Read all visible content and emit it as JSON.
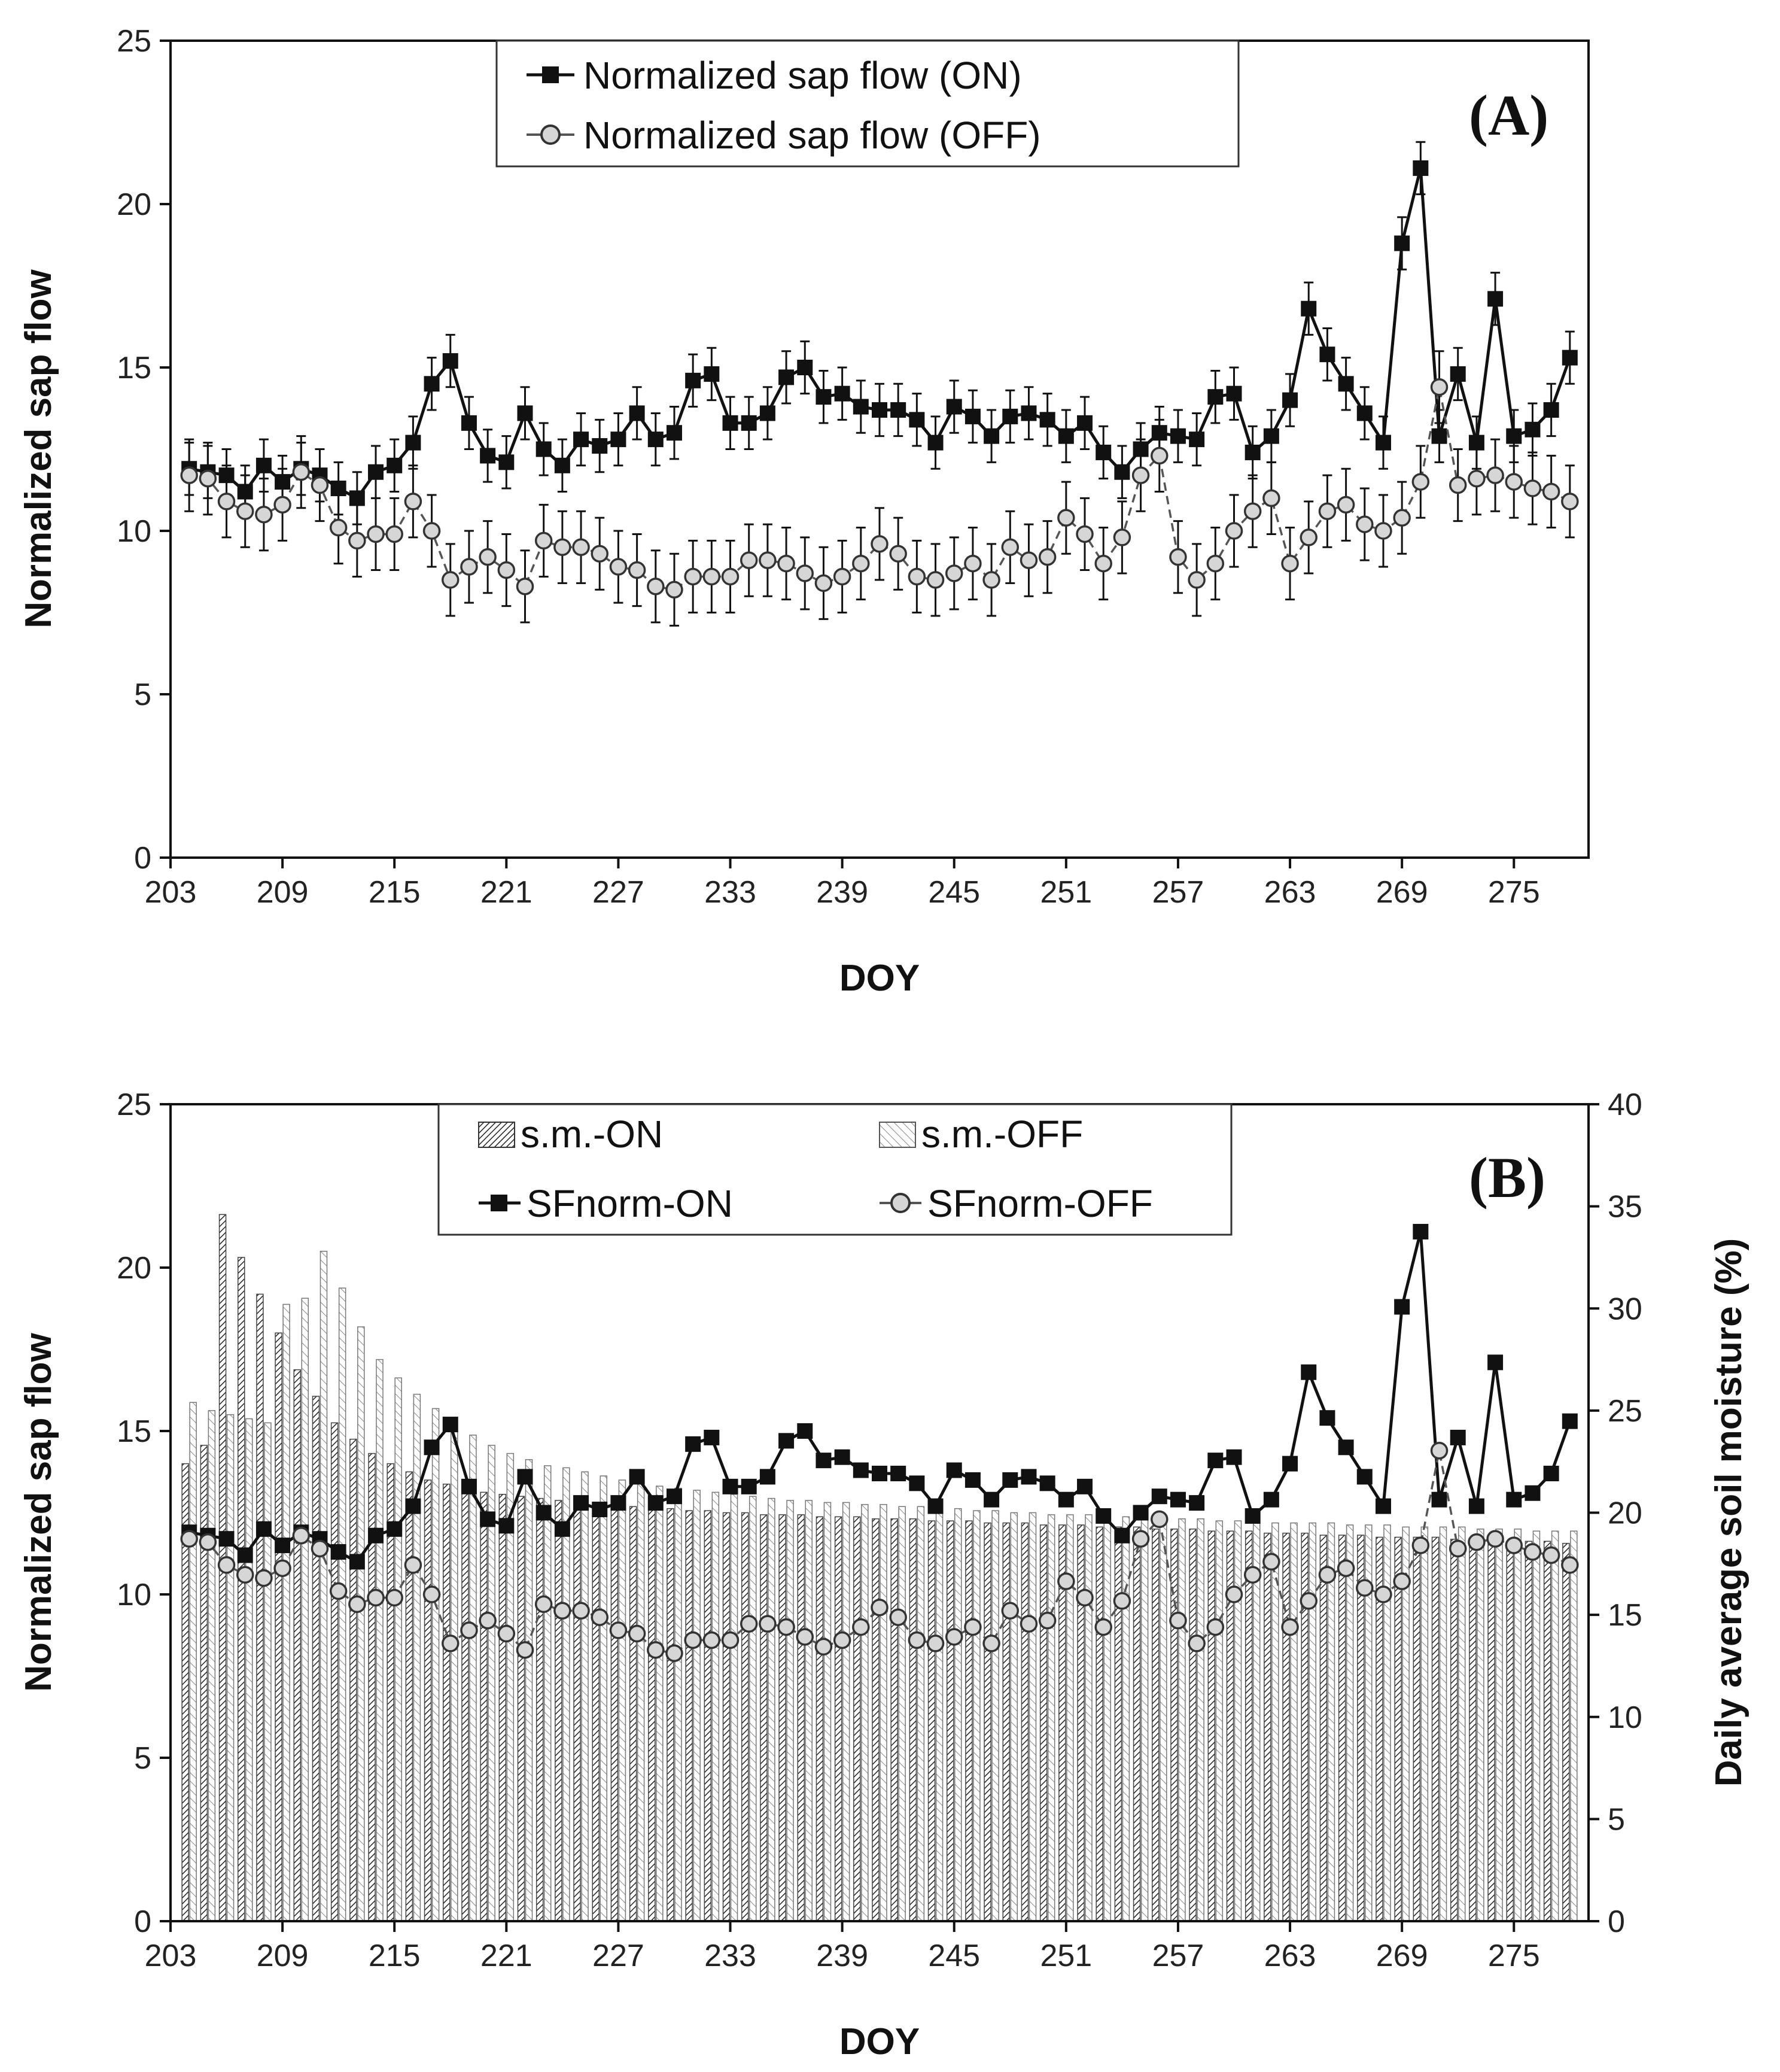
{
  "chart_data": [
    {
      "type": "line",
      "panel_label": "(A)",
      "xlabel": "DOY",
      "ylabel": "Normalized sap flow",
      "xlim": [
        203,
        279
      ],
      "ylim": [
        0,
        25
      ],
      "xticks": [
        "203",
        "209",
        "215",
        "221",
        "227",
        "233",
        "239",
        "245",
        "251",
        "257",
        "263",
        "269",
        "275"
      ],
      "yticks": [
        "0",
        "5",
        "10",
        "15",
        "20",
        "25"
      ],
      "x": [
        204,
        205,
        206,
        207,
        208,
        209,
        210,
        211,
        212,
        213,
        214,
        215,
        216,
        217,
        218,
        219,
        220,
        221,
        222,
        223,
        224,
        225,
        226,
        227,
        228,
        229,
        230,
        231,
        232,
        233,
        234,
        235,
        236,
        237,
        238,
        239,
        240,
        241,
        242,
        243,
        244,
        245,
        246,
        247,
        248,
        249,
        250,
        251,
        252,
        253,
        254,
        255,
        256,
        257,
        258,
        259,
        260,
        261,
        262,
        263,
        264,
        265,
        266,
        267,
        268,
        269,
        270,
        271,
        272,
        273,
        274,
        275,
        276,
        277,
        278
      ],
      "series": [
        {
          "name": "Normalized sap flow (ON)",
          "values": [
            11.9,
            11.8,
            11.7,
            11.2,
            12.0,
            11.5,
            11.9,
            11.7,
            11.3,
            11.0,
            11.8,
            12.0,
            12.7,
            14.5,
            15.2,
            13.3,
            12.3,
            12.1,
            13.6,
            12.5,
            12.0,
            12.8,
            12.6,
            12.8,
            13.6,
            12.8,
            13.0,
            14.6,
            14.8,
            13.3,
            13.3,
            13.6,
            14.7,
            15.0,
            14.1,
            14.2,
            13.8,
            13.7,
            13.7,
            13.4,
            12.7,
            13.8,
            13.5,
            12.9,
            13.5,
            13.6,
            13.4,
            12.9,
            13.3,
            12.4,
            11.8,
            12.5,
            13.0,
            12.9,
            12.8,
            14.1,
            14.2,
            12.4,
            12.9,
            14.0,
            16.8,
            15.4,
            14.5,
            13.6,
            12.7,
            18.8,
            21.1,
            12.9,
            14.8,
            12.7,
            17.1,
            12.9,
            13.1,
            13.7,
            15.3
          ],
          "error": 0.8,
          "marker": "filled-square",
          "line": "solid"
        },
        {
          "name": "Normalized sap flow (OFF)",
          "values": [
            11.7,
            11.6,
            10.9,
            10.6,
            10.5,
            10.8,
            11.8,
            11.4,
            10.1,
            9.7,
            9.9,
            9.9,
            10.9,
            10.0,
            8.5,
            8.9,
            9.2,
            8.8,
            8.3,
            9.7,
            9.5,
            9.5,
            9.3,
            8.9,
            8.8,
            8.3,
            8.2,
            8.6,
            8.6,
            8.6,
            9.1,
            9.1,
            9.0,
            8.7,
            8.4,
            8.6,
            9.0,
            9.6,
            9.3,
            8.6,
            8.5,
            8.7,
            9.0,
            8.5,
            9.5,
            9.1,
            9.2,
            10.4,
            9.9,
            9.0,
            9.8,
            11.7,
            12.3,
            9.2,
            8.5,
            9.0,
            10.0,
            10.6,
            11.0,
            9.0,
            9.8,
            10.6,
            10.8,
            10.2,
            10.0,
            10.4,
            11.5,
            14.4,
            11.4,
            11.6,
            11.7,
            11.5,
            11.3,
            11.2,
            10.9
          ],
          "error": 1.1,
          "marker": "open-circle",
          "line": "dashed"
        }
      ]
    },
    {
      "type": "bar+line",
      "panel_label": "(B)",
      "xlabel": "DOY",
      "ylabel": "Normalized sap flow",
      "y2label": "Daily average soil moisture (%)",
      "xlim": [
        203,
        279
      ],
      "ylim": [
        0,
        25
      ],
      "y2lim": [
        0,
        40
      ],
      "xticks": [
        "203",
        "209",
        "215",
        "221",
        "227",
        "233",
        "239",
        "245",
        "251",
        "257",
        "263",
        "269",
        "275"
      ],
      "yticks": [
        "0",
        "5",
        "10",
        "15",
        "20",
        "25"
      ],
      "y2ticks": [
        "0",
        "5",
        "10",
        "15",
        "20",
        "25",
        "30",
        "35",
        "40"
      ],
      "x": [
        204,
        205,
        206,
        207,
        208,
        209,
        210,
        211,
        212,
        213,
        214,
        215,
        216,
        217,
        218,
        219,
        220,
        221,
        222,
        223,
        224,
        225,
        226,
        227,
        228,
        229,
        230,
        231,
        232,
        233,
        234,
        235,
        236,
        237,
        238,
        239,
        240,
        241,
        242,
        243,
        244,
        245,
        246,
        247,
        248,
        249,
        250,
        251,
        252,
        253,
        254,
        255,
        256,
        257,
        258,
        259,
        260,
        261,
        262,
        263,
        264,
        265,
        266,
        267,
        268,
        269,
        270,
        271,
        272,
        273,
        274,
        275,
        276,
        277,
        278
      ],
      "bar_series": [
        {
          "name": "s.m.-ON",
          "values": [
            22.4,
            23.3,
            34.6,
            32.5,
            30.7,
            28.8,
            27.0,
            25.7,
            24.4,
            23.6,
            22.9,
            22.4,
            22.0,
            21.6,
            21.4,
            21.2,
            21.0,
            20.9,
            20.8,
            20.7,
            20.6,
            20.5,
            20.4,
            20.3,
            20.3,
            20.2,
            20.2,
            20.1,
            20.1,
            20.0,
            20.0,
            19.9,
            19.9,
            19.9,
            19.8,
            19.8,
            19.8,
            19.7,
            19.7,
            19.7,
            19.6,
            19.6,
            19.6,
            19.5,
            19.5,
            19.5,
            19.4,
            19.4,
            19.4,
            19.3,
            19.3,
            19.3,
            19.2,
            19.2,
            19.2,
            19.1,
            19.1,
            19.1,
            19.0,
            19.0,
            19.0,
            18.9,
            18.9,
            18.9,
            18.8,
            18.8,
            18.8,
            18.8,
            18.7,
            18.7,
            18.7,
            18.6,
            18.6,
            18.6,
            18.5
          ],
          "pattern": "dense-hatch"
        },
        {
          "name": "s.m.-OFF",
          "values": [
            25.4,
            25.0,
            24.8,
            24.6,
            24.4,
            30.2,
            30.5,
            32.8,
            31.0,
            29.1,
            27.5,
            26.6,
            25.8,
            25.1,
            24.6,
            23.8,
            23.3,
            22.9,
            22.6,
            22.3,
            22.2,
            22.0,
            21.8,
            21.6,
            21.5,
            21.3,
            21.2,
            21.1,
            21.0,
            20.9,
            20.8,
            20.7,
            20.6,
            20.6,
            20.5,
            20.5,
            20.4,
            20.4,
            20.3,
            20.3,
            20.2,
            20.2,
            20.1,
            20.1,
            20.0,
            20.0,
            19.9,
            19.9,
            19.9,
            19.8,
            19.8,
            19.8,
            19.7,
            19.7,
            19.7,
            19.6,
            19.6,
            19.6,
            19.5,
            19.5,
            19.5,
            19.5,
            19.4,
            19.4,
            19.4,
            19.3,
            19.3,
            19.3,
            19.3,
            19.2,
            19.2,
            19.2,
            19.1,
            19.1,
            19.1
          ],
          "pattern": "light-hatch"
        }
      ],
      "series": [
        {
          "name": "SFnorm-ON",
          "values": [
            11.9,
            11.8,
            11.7,
            11.2,
            12.0,
            11.5,
            11.9,
            11.7,
            11.3,
            11.0,
            11.8,
            12.0,
            12.7,
            14.5,
            15.2,
            13.3,
            12.3,
            12.1,
            13.6,
            12.5,
            12.0,
            12.8,
            12.6,
            12.8,
            13.6,
            12.8,
            13.0,
            14.6,
            14.8,
            13.3,
            13.3,
            13.6,
            14.7,
            15.0,
            14.1,
            14.2,
            13.8,
            13.7,
            13.7,
            13.4,
            12.7,
            13.8,
            13.5,
            12.9,
            13.5,
            13.6,
            13.4,
            12.9,
            13.3,
            12.4,
            11.8,
            12.5,
            13.0,
            12.9,
            12.8,
            14.1,
            14.2,
            12.4,
            12.9,
            14.0,
            16.8,
            15.4,
            14.5,
            13.6,
            12.7,
            18.8,
            21.1,
            12.9,
            14.8,
            12.7,
            17.1,
            12.9,
            13.1,
            13.7,
            15.3
          ],
          "marker": "filled-square",
          "line": "solid"
        },
        {
          "name": "SFnorm-OFF",
          "values": [
            11.7,
            11.6,
            10.9,
            10.6,
            10.5,
            10.8,
            11.8,
            11.4,
            10.1,
            9.7,
            9.9,
            9.9,
            10.9,
            10.0,
            8.5,
            8.9,
            9.2,
            8.8,
            8.3,
            9.7,
            9.5,
            9.5,
            9.3,
            8.9,
            8.8,
            8.3,
            8.2,
            8.6,
            8.6,
            8.6,
            9.1,
            9.1,
            9.0,
            8.7,
            8.4,
            8.6,
            9.0,
            9.6,
            9.3,
            8.6,
            8.5,
            8.7,
            9.0,
            8.5,
            9.5,
            9.1,
            9.2,
            10.4,
            9.9,
            9.0,
            9.8,
            11.7,
            12.3,
            9.2,
            8.5,
            9.0,
            10.0,
            10.6,
            11.0,
            9.0,
            9.8,
            10.6,
            10.8,
            10.2,
            10.0,
            10.4,
            11.5,
            14.4,
            11.4,
            11.6,
            11.7,
            11.5,
            11.3,
            11.2,
            10.9
          ],
          "marker": "open-circle",
          "line": "dashed"
        }
      ]
    }
  ],
  "colors": {
    "ink": "#111111",
    "circle_fill": "#d6d6d6",
    "bar_stroke": "#555555"
  }
}
